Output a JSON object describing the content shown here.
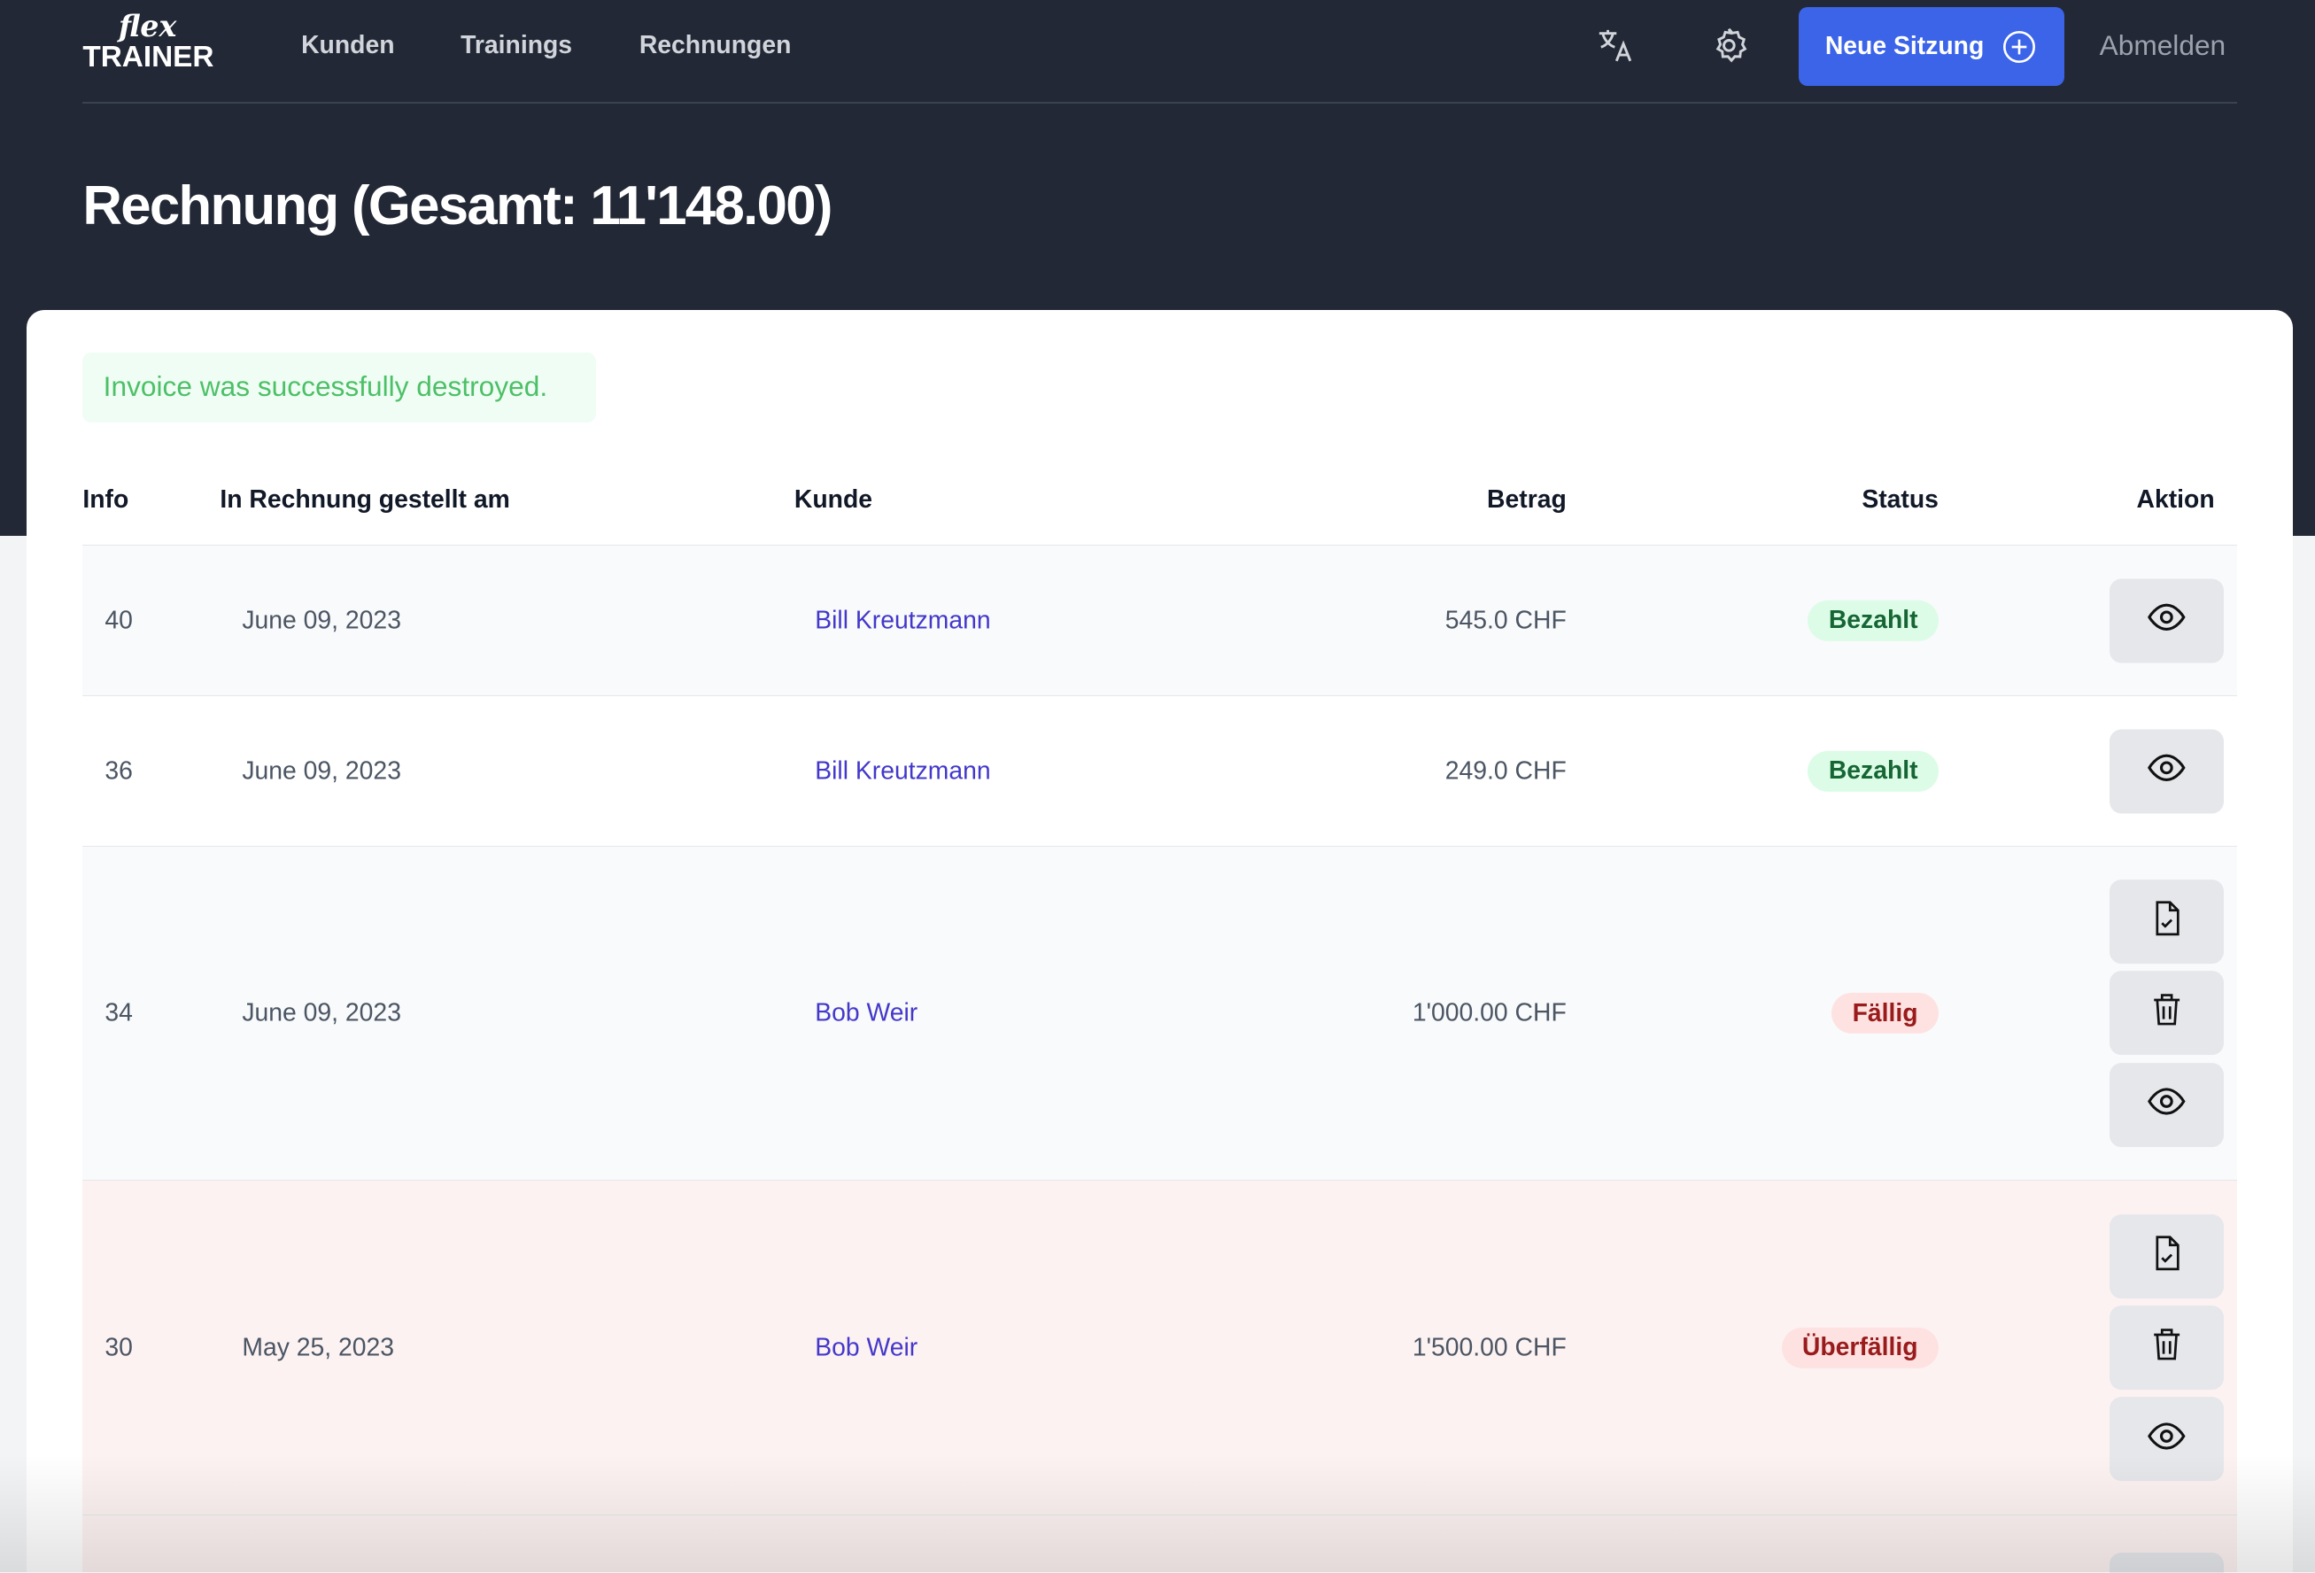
{
  "logo": {
    "script": "flex",
    "word": "TRAINER"
  },
  "nav": {
    "items": [
      "Kunden",
      "Trainings",
      "Rechnungen"
    ],
    "new_session": "Neue Sitzung",
    "logout": "Abmelden"
  },
  "page": {
    "title": "Rechnung (Gesamt: 11'148.00)"
  },
  "alert": {
    "text": "Invoice was successfully destroyed."
  },
  "table": {
    "headers": [
      "Info",
      "In Rechnung gestellt am",
      "Kunde",
      "Betrag",
      "Status",
      "Aktion"
    ],
    "rows": [
      {
        "info": "40",
        "date": "June 09, 2023",
        "customer": "Bill Kreutzmann",
        "amount": "545.0 CHF",
        "status": "Bezahlt"
      },
      {
        "info": "36",
        "date": "June 09, 2023",
        "customer": "Bill Kreutzmann",
        "amount": "249.0 CHF",
        "status": "Bezahlt"
      },
      {
        "info": "34",
        "date": "June 09, 2023",
        "customer": "Bob Weir",
        "amount": "1'000.00 CHF",
        "status": "Fällig"
      },
      {
        "info": "30",
        "date": "May 25, 2023",
        "customer": "Bob Weir",
        "amount": "1'500.00 CHF",
        "status": "Überfällig"
      }
    ]
  },
  "colors": {
    "header_bg": "#222835",
    "accent": "#3b64e8",
    "paid_bg": "#dcfce7",
    "paid_fg": "#166534",
    "due_bg": "#fee2e2",
    "due_fg": "#991b1b",
    "overdue_row": "#fdf2f2"
  }
}
